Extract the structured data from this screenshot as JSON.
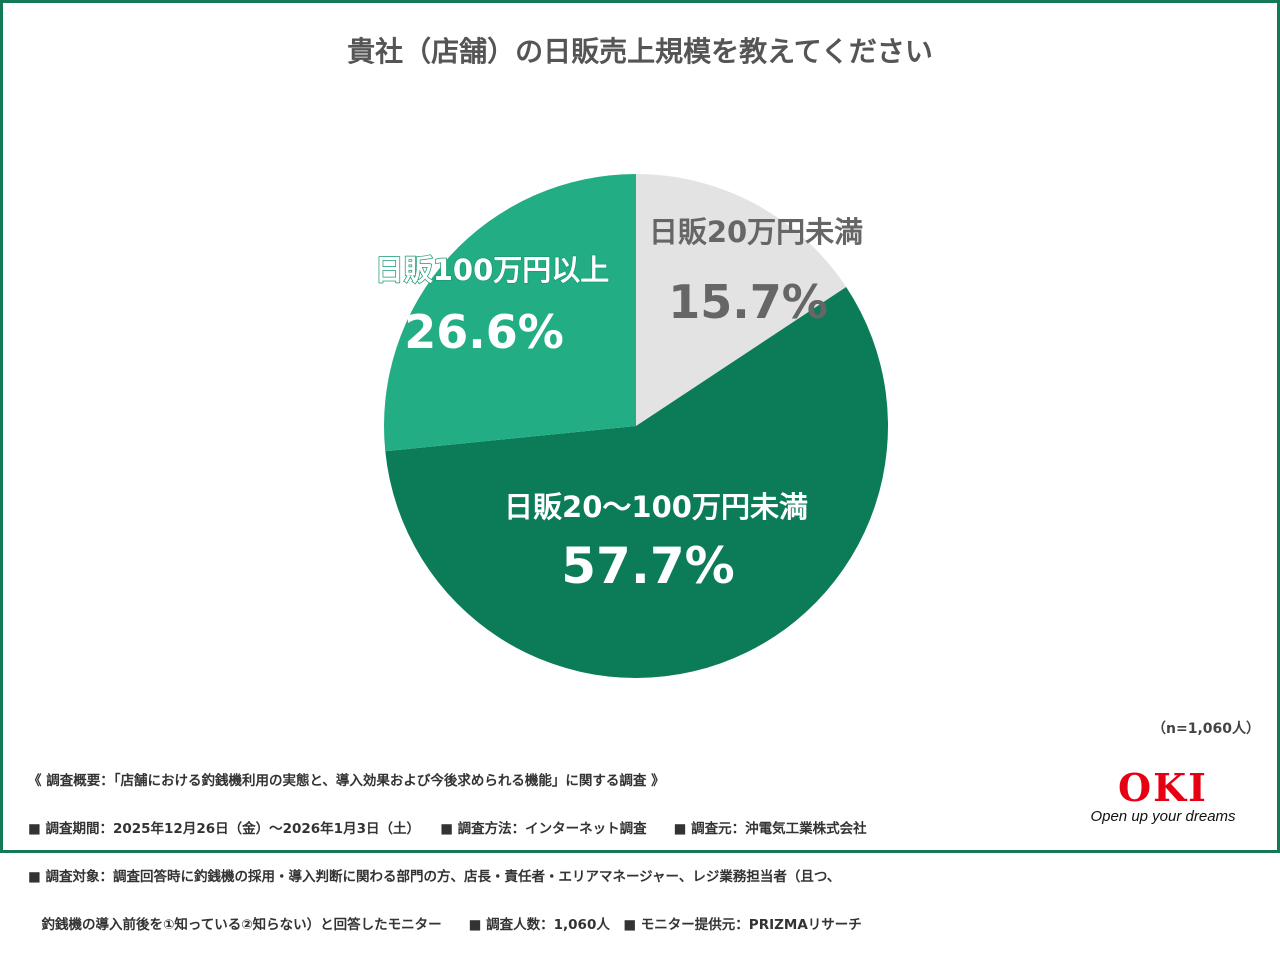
{
  "chart_data": {
    "type": "pie",
    "title": "貴社（店舗）の日販売上規模を教えてください",
    "start": "top",
    "direction": "clockwise",
    "slices": [
      {
        "label": "日販20万円未満",
        "value": 15.7,
        "display": "15.7%",
        "color": "#e3e3e3",
        "text_color": "#666666"
      },
      {
        "label": "日販20〜100万円未満",
        "value": 57.7,
        "display": "57.7%",
        "color": "#0c7b58",
        "text_color": "#ffffff"
      },
      {
        "label": "日販100万円以上",
        "value": 26.6,
        "display": "26.6%",
        "color": "#23ad85",
        "text_color": "#ffffff"
      }
    ]
  },
  "sample": "（n=1,060人）",
  "notes": [
    "《 調査概要：「店舗における釣銭機利用の実態と、導入効果および今後求められる機能」に関する調査 》",
    "■ 調査期間：2025年12月26日（金）〜2026年1月3日（土）　　■ 調査方法：インターネット調査　　■ 調査元：沖電気工業株式会社",
    "■ 調査対象：調査回答時に釣銭機の採用・導入判断に関わる部門の方、店長・責任者・エリアマネージャー、レジ業務担当者（且つ、",
    "　釣銭機の導入前後を①知っている②知らない）と回答したモニター　　■ 調査人数：1,060人　■ モニター提供元：PRIZMAリサーチ"
  ],
  "logo": {
    "name": "OKI",
    "tagline": "Open up your dreams"
  }
}
